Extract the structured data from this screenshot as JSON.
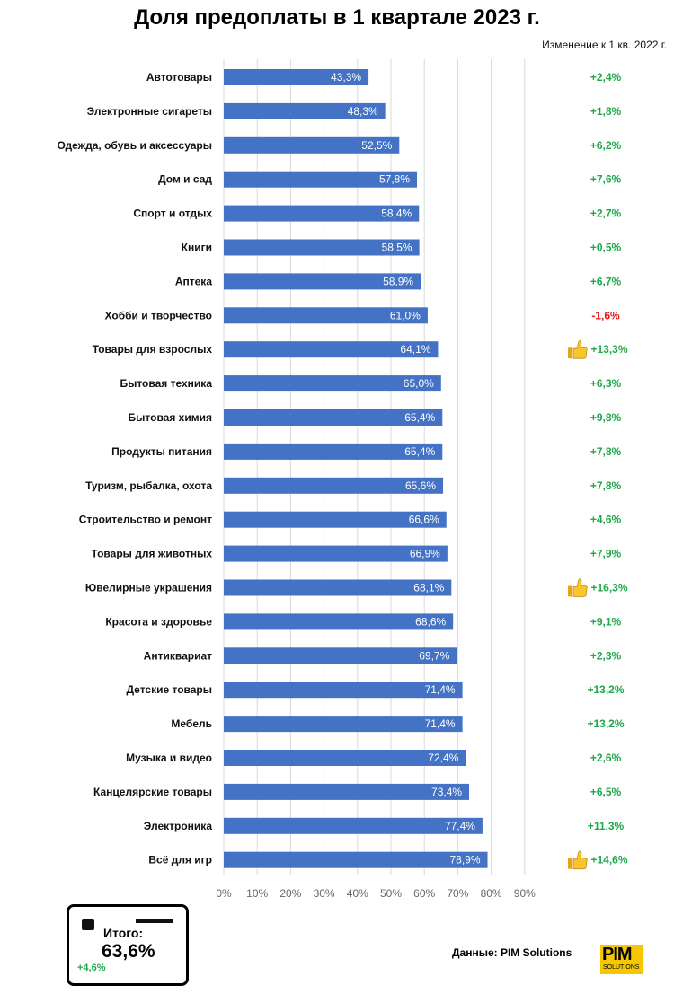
{
  "chart_data": {
    "type": "bar",
    "orientation": "horizontal",
    "title": "Доля предоплаты в 1 квартале 2023 г.",
    "change_header": "Изменение к 1 кв. 2022 г.",
    "xlim": [
      0,
      90
    ],
    "x_ticks": [
      0,
      10,
      20,
      30,
      40,
      50,
      60,
      70,
      80,
      90
    ],
    "x_tick_labels": [
      "0%",
      "10%",
      "20%",
      "30%",
      "40%",
      "50%",
      "60%",
      "70%",
      "80%",
      "90%"
    ],
    "grid": true,
    "bar_color": "#4472c4",
    "positive_color": "#1fa84a",
    "negative_color": "#e0181b",
    "categories": [
      "Автотовары",
      "Электронные сигареты",
      "Одежда, обувь и аксессуары",
      "Дом и сад",
      "Спорт и отдых",
      "Книги",
      "Аптека",
      "Хобби и творчество",
      "Товары для взрослых",
      "Бытовая техника",
      "Бытовая химия",
      "Продукты питания",
      "Туризм, рыбалка, охота",
      "Строительство и ремонт",
      "Товары для животных",
      "Ювелирные украшения",
      "Красота и здоровье",
      "Антиквариат",
      "Детские товары",
      "Мебель",
      "Музыка и видео",
      "Канцелярские товары",
      "Электроника",
      "Всё для игр"
    ],
    "values": [
      43.3,
      48.3,
      52.5,
      57.8,
      58.4,
      58.5,
      58.9,
      61.0,
      64.1,
      65.0,
      65.4,
      65.4,
      65.6,
      66.6,
      66.9,
      68.1,
      68.6,
      69.7,
      71.4,
      71.4,
      72.4,
      73.4,
      77.4,
      78.9
    ],
    "value_labels": [
      "43,3%",
      "48,3%",
      "52,5%",
      "57,8%",
      "58,4%",
      "58,5%",
      "58,9%",
      "61,0%",
      "64,1%",
      "65,0%",
      "65,4%",
      "65,4%",
      "65,6%",
      "66,6%",
      "66,9%",
      "68,1%",
      "68,6%",
      "69,7%",
      "71,4%",
      "71,4%",
      "72,4%",
      "73,4%",
      "77,4%",
      "78,9%"
    ],
    "changes": [
      2.4,
      1.8,
      6.2,
      7.6,
      2.7,
      0.5,
      6.7,
      -1.6,
      13.3,
      6.3,
      9.8,
      7.8,
      7.8,
      4.6,
      7.9,
      16.3,
      9.1,
      2.3,
      13.2,
      13.2,
      2.6,
      6.5,
      11.3,
      14.6
    ],
    "change_labels": [
      "+2,4%",
      "+1,8%",
      "+6,2%",
      "+7,6%",
      "+2,7%",
      "+0,5%",
      "+6,7%",
      "-1,6%",
      "+13,3%",
      "+6,3%",
      "+9,8%",
      "+7,8%",
      "+7,8%",
      "+4,6%",
      "+7,9%",
      "+16,3%",
      "+9,1%",
      "+2,3%",
      "+13,2%",
      "+13,2%",
      "+2,6%",
      "+6,5%",
      "+11,3%",
      "+14,6%"
    ],
    "highlight_icon": "thumbs-up-icon",
    "highlighted": [
      "Товары для взрослых",
      "Ювелирные украшения",
      "Всё для игр"
    ]
  },
  "total": {
    "label": "Итого:",
    "value": "63,6%",
    "change": "+4,6%"
  },
  "source": "Данные: PIM Solutions",
  "logo": {
    "text": "PIM",
    "subtext": "SOLUTIONS"
  }
}
